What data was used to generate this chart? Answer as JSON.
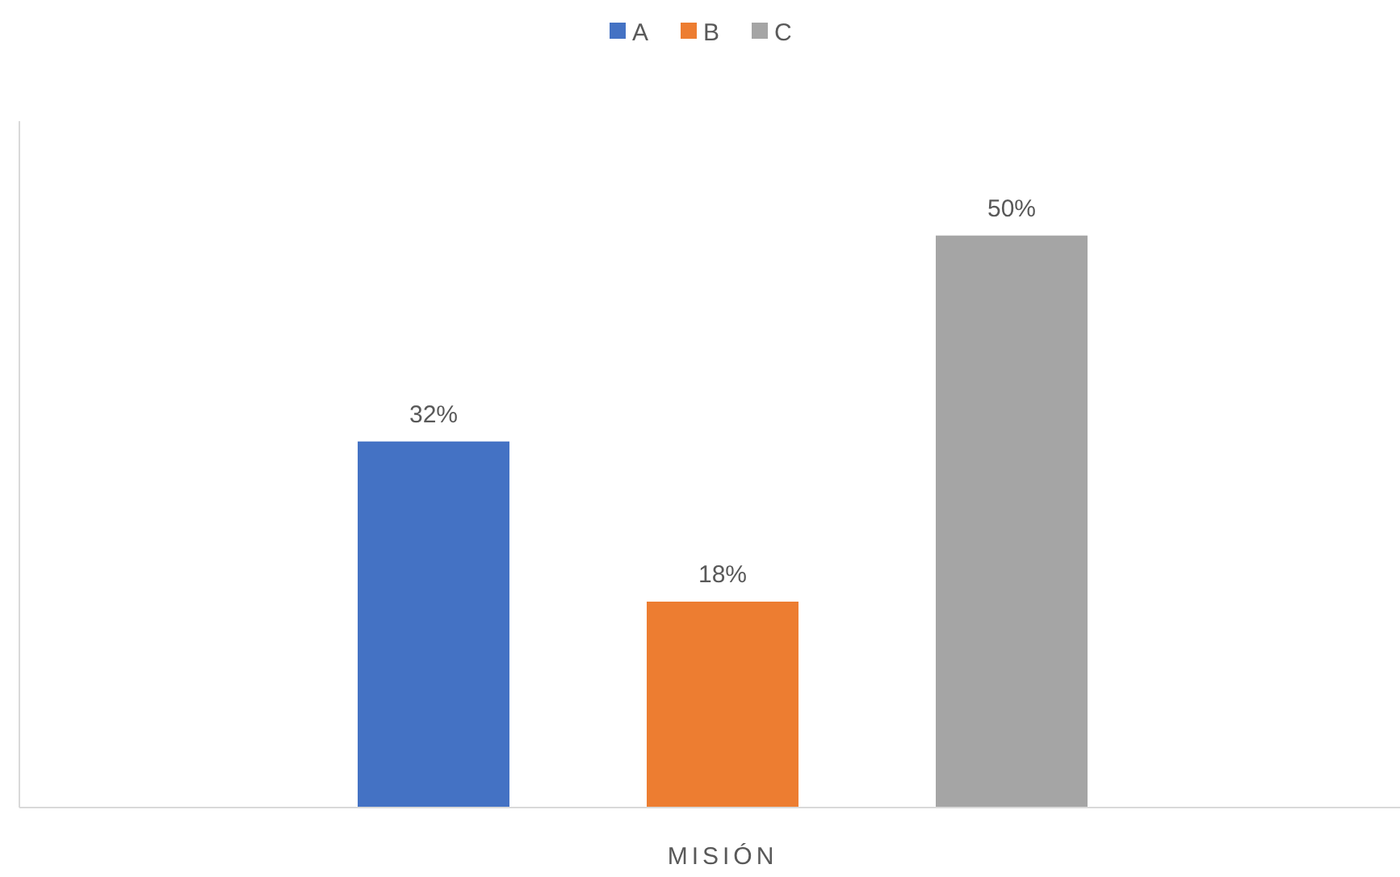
{
  "chart_data": {
    "type": "bar",
    "categories": [
      null,
      null,
      null
    ],
    "xlabel": "MISIÓN",
    "stacked": true,
    "legend": "top",
    "grid": false,
    "series": [
      {
        "name": "A",
        "color": "#4472c4",
        "values": [
          32,
          null,
          null
        ],
        "value_labels": [
          "32%",
          null,
          null
        ]
      },
      {
        "name": "B",
        "color": "#ed7d31",
        "values": [
          null,
          18,
          null
        ],
        "value_labels": [
          null,
          "18%",
          null
        ]
      },
      {
        "name": "C",
        "color": "#a5a5a5",
        "values": [
          null,
          null,
          50
        ],
        "value_labels": [
          null,
          null,
          "50%"
        ]
      }
    ]
  }
}
